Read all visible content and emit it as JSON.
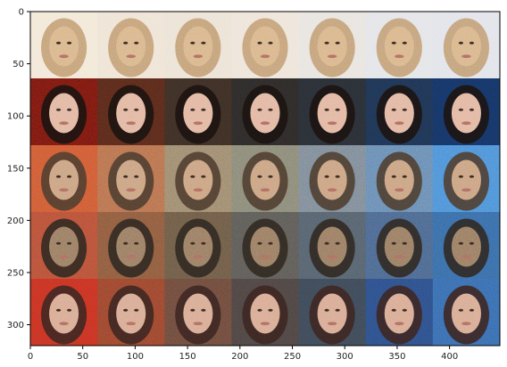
{
  "figure": {
    "x_ticks": [
      "0",
      "50",
      "100",
      "150",
      "200",
      "250",
      "300",
      "350",
      "400"
    ],
    "y_ticks": [
      "0",
      "50",
      "100",
      "150",
      "200",
      "250",
      "300"
    ],
    "x_tick_values": [
      0,
      50,
      100,
      150,
      200,
      250,
      300,
      350,
      400
    ],
    "y_tick_values": [
      0,
      50,
      100,
      150,
      200,
      250,
      300
    ],
    "x_range": [
      0,
      448
    ],
    "y_range": [
      0,
      320
    ],
    "grid": {
      "rows": 5,
      "cols": 7,
      "cell_size_units": 64
    },
    "rows": [
      {
        "background": [
          "#f2e8d8",
          "#efe3d6",
          "#ece2d6",
          "#eee4da",
          "#e8e4e0",
          "#e4e4e8",
          "#e2e3ea"
        ],
        "face": "#d9b48c",
        "hair": "#c09870"
      },
      {
        "background": [
          "#7c1a12",
          "#5a2a1c",
          "#3d2e26",
          "#2e2a2a",
          "#2a2e36",
          "#1f3454",
          "#163466"
        ],
        "face": "#e2b5a2",
        "hair": "#1a1210"
      },
      {
        "background": [
          "#cf5a36",
          "#b87050",
          "#9e8870",
          "#8a8678",
          "#7e8898",
          "#6a8ab4",
          "#4f8fd8"
        ],
        "face": "#caa082",
        "hair": "#4a3a2e"
      },
      {
        "background": [
          "#b8503a",
          "#8e5a40",
          "#6e5a48",
          "#5e5a58",
          "#56606e",
          "#4d6690",
          "#3a6aa8"
        ],
        "face": "#9a7a64",
        "hair": "#2e2620"
      },
      {
        "background": [
          "#c83224",
          "#9c4630",
          "#6e4a3e",
          "#4e4444",
          "#3e4858",
          "#2e4e8a",
          "#3a6ab0"
        ],
        "face": "#d8a894",
        "hair": "#3a2420"
      }
    ]
  }
}
